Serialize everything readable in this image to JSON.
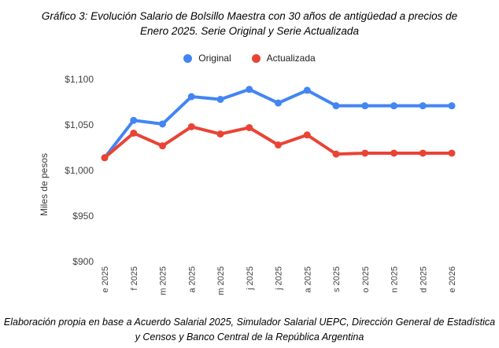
{
  "page": {
    "title_line1": "Gráfico 3: Evolución Salario de Bolsillo Maestra con 30 años de antigüedad a precios de",
    "title_line2": "Enero 2025. Serie Original y Serie Actualizada",
    "footer_line1": "Elaboración propia en base a Acuerdo Salarial 2025, Simulador Salarial UEPC, Dirección General de Estadística",
    "footer_line2": "y Censos y Banco Central de la República Argentina"
  },
  "legend": {
    "items": [
      {
        "label": "Original",
        "color": "#4285F4"
      },
      {
        "label": "Actualizada",
        "color": "#EA4335"
      }
    ]
  },
  "chart_data": {
    "type": "line",
    "title": "Gráfico 3: Evolución Salario de Bolsillo Maestra con 30 años de antigüedad a precios de Enero 2025. Serie Original y Serie Actualizada",
    "x": [
      "e 2025",
      "f 2025",
      "m 2025",
      "a 2025",
      "m 2025",
      "j 2025",
      "j 2025",
      "a 2025",
      "s 2025",
      "o 2025",
      "n 2025",
      "d 2025",
      "e 2026"
    ],
    "series": [
      {
        "name": "Original",
        "color": "#4285F4",
        "values": [
          1014,
          1055,
          1051,
          1081,
          1078,
          1089,
          1074,
          1088,
          1071,
          1071,
          1071,
          1071,
          1071
        ]
      },
      {
        "name": "Actualizada",
        "color": "#EA4335",
        "values": [
          1014,
          1041,
          1027,
          1048,
          1040,
          1047,
          1028,
          1039,
          1018,
          1019,
          1019,
          1019,
          1019
        ]
      }
    ],
    "xlabel": "",
    "ylabel": "Miles de pesos",
    "ylim": [
      900,
      1100
    ],
    "y_tick_values": [
      900,
      950,
      1000,
      1050,
      1100
    ],
    "y_tick_labels": [
      "$900",
      "$950",
      "$1,000",
      "$1,050",
      "$1,100"
    ],
    "grid": false,
    "legend_position": "top"
  }
}
